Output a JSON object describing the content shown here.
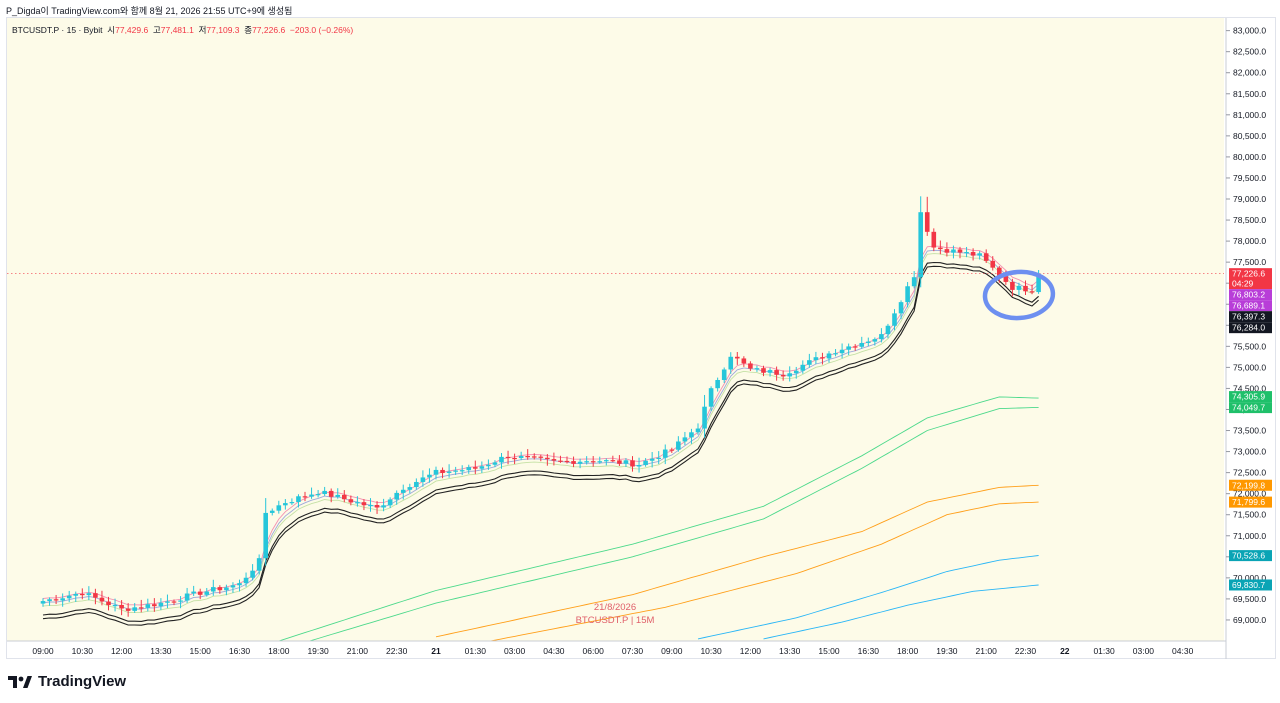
{
  "header": {
    "caption": "P_Digda이 TradingView.com와 함께 8월 21, 2026 21:55 UTC+9에 생성됨"
  },
  "symbol": {
    "title": "BTCUSDT.P · 15 · Bybit",
    "o_label": "시",
    "o_value": "77,429.6",
    "h_label": "고",
    "h_value": "77,481.1",
    "l_label": "저",
    "l_value": "77,109.3",
    "c_label": "종",
    "c_value": "77,226.6",
    "change": "−203.0 (−0.26%)"
  },
  "watermark": {
    "date": "21/8/2026",
    "symbol": "BTCUSDT.P | 15M"
  },
  "footer": {
    "brand": "TradingView"
  },
  "colors": {
    "background": "#fdfbe8",
    "up": "#26c6da",
    "down": "#f23645",
    "last_price_line": "#f23645",
    "annotation_circle": "#6d8ff0"
  },
  "chart_data": {
    "type": "candlestick",
    "ylim": [
      68500,
      83300
    ],
    "y_ticks": [
      69000,
      69500,
      70000,
      70500,
      71000,
      71500,
      72000,
      72500,
      73000,
      73500,
      74000,
      74500,
      75000,
      75500,
      76000,
      76500,
      77000,
      77500,
      78000,
      78500,
      79000,
      79500,
      80000,
      80500,
      81000,
      81500,
      82000,
      82500,
      83000
    ],
    "y_tick_labels": [
      "69,000.0",
      "69,500.0",
      "70,000.0",
      "70,500.0",
      "71,000.0",
      "71,500.0",
      "72,000.0",
      "72,500.0",
      "73,000.0",
      "73,500.0",
      "74,000.0",
      "74,500.0",
      "75,000.0",
      "75,500.0",
      "76,000.0",
      "76,500.0",
      "77,000.0",
      "77,500.0",
      "78,000.0",
      "78,500.0",
      "79,000.0",
      "79,500.0",
      "80,000.0",
      "80,500.0",
      "81,000.0",
      "81,500.0",
      "82,000.0",
      "82,500.0",
      "83,000.0"
    ],
    "x_ticks": [
      "09:00",
      "10:30",
      "12:00",
      "13:30",
      "15:00",
      "16:30",
      "18:00",
      "19:30",
      "21:00",
      "22:30",
      "21",
      "01:30",
      "03:00",
      "04:30",
      "06:00",
      "07:30",
      "09:00",
      "10:30",
      "12:00",
      "13:30",
      "15:00",
      "16:30",
      "18:00",
      "19:30",
      "21:00",
      "22:30",
      "22",
      "01:30",
      "03:00",
      "04:30"
    ],
    "x_tick_bold": [
      false,
      false,
      false,
      false,
      false,
      false,
      false,
      false,
      false,
      false,
      true,
      false,
      false,
      false,
      false,
      false,
      false,
      false,
      false,
      false,
      false,
      false,
      false,
      false,
      false,
      false,
      true,
      false,
      false,
      false
    ],
    "bars_per_tick": 6,
    "last_price": 77226.6,
    "countdown": "04:29",
    "close_path": [
      [
        0,
        69450
      ],
      [
        6,
        69650
      ],
      [
        12,
        69250
      ],
      [
        18,
        69400
      ],
      [
        24,
        69650
      ],
      [
        30,
        69850
      ],
      [
        33,
        70400
      ],
      [
        34,
        71550
      ],
      [
        37,
        71800
      ],
      [
        42,
        72050
      ],
      [
        51,
        71650
      ],
      [
        55,
        72150
      ],
      [
        60,
        72500
      ],
      [
        66,
        72600
      ],
      [
        71,
        72900
      ],
      [
        78,
        72750
      ],
      [
        84,
        72800
      ],
      [
        91,
        72700
      ],
      [
        96,
        73050
      ],
      [
        100,
        73600
      ],
      [
        102,
        74450
      ],
      [
        105,
        75300
      ],
      [
        108,
        74950
      ],
      [
        113,
        74850
      ],
      [
        121,
        75400
      ],
      [
        128,
        75750
      ],
      [
        133,
        77200
      ],
      [
        134,
        78700
      ],
      [
        136,
        77850
      ],
      [
        143,
        77650
      ],
      [
        148,
        76900
      ],
      [
        151,
        76850
      ],
      [
        152,
        77226.6
      ]
    ],
    "series": [
      {
        "name": "",
        "color": "#f48fb1",
        "offset": 60,
        "width": 0.9,
        "path_offset": true
      },
      {
        "name": "",
        "color": "#9fa8da",
        "offset": -40,
        "width": 0.9,
        "path_offset": true
      },
      {
        "name": "",
        "color": "#c5e1a5",
        "offset": -120,
        "width": 0.9,
        "path_offset": true
      },
      {
        "name": "",
        "color": "#222222",
        "offset": -330,
        "width": 1.1,
        "path_offset": true
      },
      {
        "name": "",
        "color": "#222222",
        "offset": -420,
        "width": 1.1,
        "path_offset": true
      }
    ],
    "bands": [
      {
        "color": "#4cd98b",
        "points": [
          [
            30,
            68200
          ],
          [
            60,
            69700
          ],
          [
            90,
            70800
          ],
          [
            110,
            71700
          ],
          [
            125,
            72900
          ],
          [
            135,
            73800
          ],
          [
            146,
            74300
          ],
          [
            152,
            74270
          ]
        ]
      },
      {
        "color": "#4cd98b",
        "points": [
          [
            30,
            68000
          ],
          [
            60,
            69400
          ],
          [
            90,
            70500
          ],
          [
            110,
            71400
          ],
          [
            125,
            72600
          ],
          [
            135,
            73500
          ],
          [
            146,
            74020
          ],
          [
            152,
            74050
          ]
        ]
      },
      {
        "color": "#ff9f1a",
        "points": [
          [
            60,
            68600
          ],
          [
            90,
            69600
          ],
          [
            110,
            70500
          ],
          [
            125,
            71100
          ],
          [
            135,
            71800
          ],
          [
            146,
            72150
          ],
          [
            152,
            72200
          ]
        ]
      },
      {
        "color": "#ff9f1a",
        "points": [
          [
            65,
            68400
          ],
          [
            95,
            69300
          ],
          [
            115,
            70100
          ],
          [
            128,
            70800
          ],
          [
            138,
            71500
          ],
          [
            146,
            71760
          ],
          [
            152,
            71800
          ]
        ]
      },
      {
        "color": "#29b6f6",
        "points": [
          [
            100,
            68550
          ],
          [
            115,
            69050
          ],
          [
            128,
            69650
          ],
          [
            138,
            70150
          ],
          [
            146,
            70420
          ],
          [
            152,
            70530
          ]
        ]
      },
      {
        "color": "#29b6f6",
        "points": [
          [
            110,
            68550
          ],
          [
            122,
            68950
          ],
          [
            132,
            69350
          ],
          [
            142,
            69680
          ],
          [
            152,
            69830
          ]
        ]
      }
    ],
    "price_badges": [
      {
        "value": "77,226.6",
        "sub": "04:29",
        "color": "#f23645",
        "price": 77226.6
      },
      {
        "value": "76,803.2",
        "color": "#b83dd8",
        "price": 76803.2
      },
      {
        "value": "76,689.1",
        "color": "#b83dd8",
        "price": 76689.1
      },
      {
        "value": "76,397.3",
        "color": "#131722",
        "price": 76397.3
      },
      {
        "value": "76,284.0",
        "color": "#131722",
        "price": 76284.0
      },
      {
        "value": "74,305.9",
        "color": "#1fc06a",
        "price": 74305.9
      },
      {
        "value": "74,049.7",
        "color": "#1fc06a",
        "price": 74049.7
      },
      {
        "value": "72,199.8",
        "color": "#ff9800",
        "price": 72199.8
      },
      {
        "value": "71,799.6",
        "color": "#ff9800",
        "price": 71799.6
      },
      {
        "value": "70,528.6",
        "color": "#0aa4b5",
        "price": 70528.6
      },
      {
        "value": "69,830.7",
        "color": "#0aa4b5",
        "price": 69830.7
      }
    ]
  }
}
